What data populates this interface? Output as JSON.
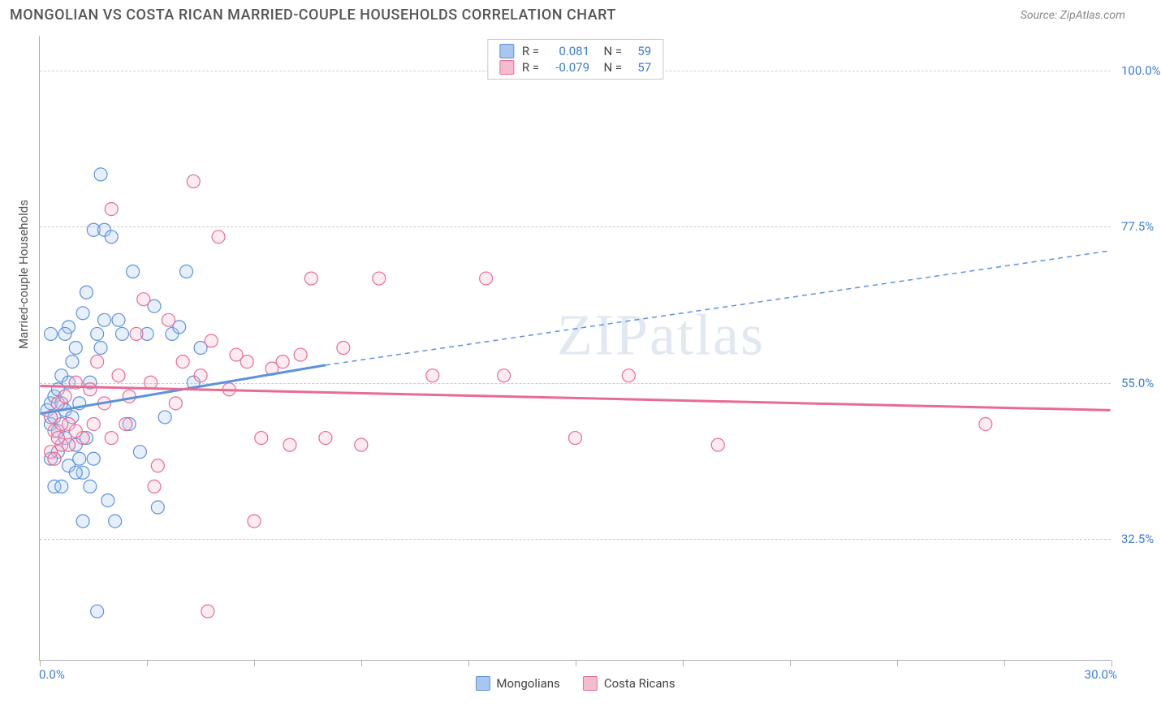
{
  "title": "MONGOLIAN VS COSTA RICAN MARRIED-COUPLE HOUSEHOLDS CORRELATION CHART",
  "source": "Source: ZipAtlas.com",
  "y_axis_title": "Married-couple Households",
  "watermark": "ZIPatlas",
  "chart": {
    "type": "scatter",
    "xlim": [
      0,
      30
    ],
    "ylim": [
      15,
      105
    ],
    "x_min_label": "0.0%",
    "x_max_label": "30.0%",
    "x_ticks": [
      0,
      3,
      6,
      9,
      12,
      15,
      18,
      21,
      24,
      27,
      30
    ],
    "y_gridlines": [
      32.5,
      55.0,
      77.5,
      100.0
    ],
    "y_tick_labels": [
      "32.5%",
      "55.0%",
      "77.5%",
      "100.0%"
    ],
    "background_color": "#ffffff",
    "grid_color": "#cccccc",
    "axis_color": "#b0b0b0",
    "tick_label_color": "#3b7dd8",
    "marker_radius": 8,
    "marker_stroke_width": 1.2,
    "marker_fill_opacity": 0.28
  },
  "series": [
    {
      "name": "Mongolians",
      "color": "#5b93dd",
      "fill": "#a9c7ee",
      "r_value": "0.081",
      "n_value": "59",
      "trend": {
        "x1": 0,
        "y1": 50.5,
        "x2": 8,
        "y2": 57.5,
        "x2_dash": 30,
        "y2_dash": 74
      },
      "points": [
        [
          0.2,
          51
        ],
        [
          0.3,
          52
        ],
        [
          0.3,
          49
        ],
        [
          0.4,
          53
        ],
        [
          0.4,
          50
        ],
        [
          0.5,
          48
        ],
        [
          0.5,
          54
        ],
        [
          0.5,
          45
        ],
        [
          0.6,
          52
        ],
        [
          0.6,
          56
        ],
        [
          0.7,
          51
        ],
        [
          0.7,
          47
        ],
        [
          0.8,
          55
        ],
        [
          0.8,
          43
        ],
        [
          0.8,
          63
        ],
        [
          0.9,
          50
        ],
        [
          0.9,
          58
        ],
        [
          1.0,
          46
        ],
        [
          1.0,
          60
        ],
        [
          1.1,
          52
        ],
        [
          1.2,
          65
        ],
        [
          1.2,
          42
        ],
        [
          1.3,
          68
        ],
        [
          1.4,
          40
        ],
        [
          1.5,
          77
        ],
        [
          1.5,
          44
        ],
        [
          1.7,
          85
        ],
        [
          1.8,
          77
        ],
        [
          1.9,
          38
        ],
        [
          2.0,
          76
        ],
        [
          2.1,
          35
        ],
        [
          2.2,
          64
        ],
        [
          2.3,
          62
        ],
        [
          2.5,
          49
        ],
        [
          2.6,
          71
        ],
        [
          2.8,
          45
        ],
        [
          3.0,
          62
        ],
        [
          3.2,
          66
        ],
        [
          3.3,
          37
        ],
        [
          3.5,
          50
        ],
        [
          3.7,
          62
        ],
        [
          3.9,
          63
        ],
        [
          4.1,
          71
        ],
        [
          4.3,
          55
        ],
        [
          4.5,
          60
        ],
        [
          1.6,
          22
        ],
        [
          1.2,
          35
        ],
        [
          0.3,
          62
        ],
        [
          0.3,
          44
        ],
        [
          0.4,
          40
        ],
        [
          0.6,
          40
        ],
        [
          0.7,
          62
        ],
        [
          1.0,
          42
        ],
        [
          1.1,
          44
        ],
        [
          1.3,
          47
        ],
        [
          1.4,
          55
        ],
        [
          1.6,
          62
        ],
        [
          1.7,
          60
        ],
        [
          1.8,
          64
        ]
      ]
    },
    {
      "name": "Costa Ricans",
      "color": "#e86b94",
      "fill": "#f5bccd",
      "r_value": "-0.079",
      "n_value": "57",
      "trend": {
        "x1": 0,
        "y1": 54.5,
        "x2": 30,
        "y2": 51.0
      },
      "points": [
        [
          0.3,
          50
        ],
        [
          0.4,
          48
        ],
        [
          0.5,
          52
        ],
        [
          0.6,
          46
        ],
        [
          0.7,
          53
        ],
        [
          0.8,
          49
        ],
        [
          1.0,
          55
        ],
        [
          1.2,
          47
        ],
        [
          1.4,
          54
        ],
        [
          1.6,
          58
        ],
        [
          1.8,
          52
        ],
        [
          2.0,
          80
        ],
        [
          2.2,
          56
        ],
        [
          2.4,
          49
        ],
        [
          2.7,
          62
        ],
        [
          2.9,
          67
        ],
        [
          3.1,
          55
        ],
        [
          3.3,
          43
        ],
        [
          3.6,
          64
        ],
        [
          3.8,
          52
        ],
        [
          4.0,
          58
        ],
        [
          4.3,
          84
        ],
        [
          4.5,
          56
        ],
        [
          4.8,
          61
        ],
        [
          5.0,
          76
        ],
        [
          5.3,
          54
        ],
        [
          5.5,
          59
        ],
        [
          5.8,
          58
        ],
        [
          6.0,
          35
        ],
        [
          6.2,
          47
        ],
        [
          6.5,
          57
        ],
        [
          6.8,
          58
        ],
        [
          7.0,
          46
        ],
        [
          7.3,
          59
        ],
        [
          7.6,
          70
        ],
        [
          8.0,
          47
        ],
        [
          8.5,
          60
        ],
        [
          9.0,
          46
        ],
        [
          9.5,
          70
        ],
        [
          11.0,
          56
        ],
        [
          12.5,
          70
        ],
        [
          13.0,
          56
        ],
        [
          15.0,
          47
        ],
        [
          16.5,
          56
        ],
        [
          19.0,
          46
        ],
        [
          26.5,
          49
        ],
        [
          4.7,
          22
        ],
        [
          3.2,
          40
        ],
        [
          0.3,
          45
        ],
        [
          0.4,
          44
        ],
        [
          0.5,
          47
        ],
        [
          0.6,
          49
        ],
        [
          0.8,
          46
        ],
        [
          1.0,
          48
        ],
        [
          1.5,
          49
        ],
        [
          2.0,
          47
        ],
        [
          2.5,
          53
        ]
      ]
    }
  ],
  "bottom_legend": [
    {
      "label": "Mongolians",
      "series": 0
    },
    {
      "label": "Costa Ricans",
      "series": 1
    }
  ]
}
